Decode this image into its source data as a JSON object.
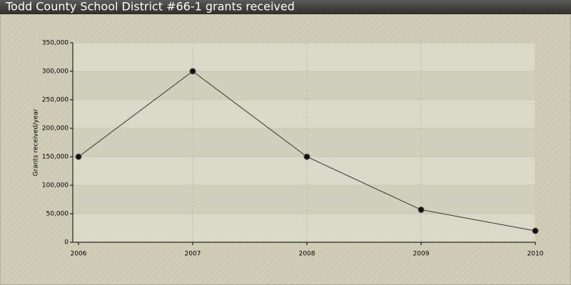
{
  "chart_data": {
    "type": "line",
    "title": "Todd County School District #66-1 grants received",
    "y_label": "Grants received/year",
    "x": [
      2006,
      2007,
      2008,
      2009,
      2010
    ],
    "values": [
      150000,
      300000,
      150000,
      57000,
      20000
    ],
    "color": "#333333",
    "xlim": [
      2006,
      2010
    ],
    "xticks": [
      2006,
      2007,
      2008,
      2009,
      2010
    ],
    "ylim": [
      0,
      350000
    ],
    "yticks": [
      0,
      {
        "value": 50000,
        "label": "50,000"
      },
      {
        "value": 100000,
        "label": "100,000"
      },
      {
        "value": 150000,
        "label": "150,000"
      },
      {
        "value": 200000,
        "label": "200,000"
      },
      {
        "value": 250000,
        "label": "250,000"
      },
      {
        "value": 300000,
        "label": "300,000"
      },
      {
        "value": 350000,
        "label": "350,000"
      }
    ],
    "grid": true
  }
}
